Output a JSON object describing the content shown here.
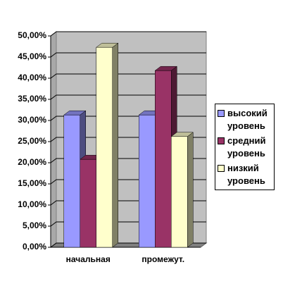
{
  "chart_data": {
    "type": "bar3d",
    "categories": [
      "начальная",
      "промежут."
    ],
    "series": [
      {
        "name": "высокий уровень",
        "color": "#9999ff",
        "values": [
          31.3,
          31.3
        ]
      },
      {
        "name": "средний уровень",
        "color": "#993366",
        "values": [
          20.8,
          41.8
        ]
      },
      {
        "name": "низкий уровень",
        "color": "#ffffcc",
        "values": [
          47.3,
          26.2
        ]
      }
    ],
    "ylim": [
      0,
      50
    ],
    "yticks": [
      {
        "value": 0,
        "label": "0,00%"
      },
      {
        "value": 5,
        "label": "5,00%"
      },
      {
        "value": 10,
        "label": "10,00%"
      },
      {
        "value": 15,
        "label": "15,00%"
      },
      {
        "value": 20,
        "label": "20,00%"
      },
      {
        "value": 25,
        "label": "25,00%"
      },
      {
        "value": 30,
        "label": "30,00%"
      },
      {
        "value": 35,
        "label": "35,00%"
      },
      {
        "value": 40,
        "label": "40,00%"
      },
      {
        "value": 45,
        "label": "45,00%"
      },
      {
        "value": 50,
        "label": "50,00%"
      }
    ],
    "grid": true,
    "legend": "right"
  }
}
